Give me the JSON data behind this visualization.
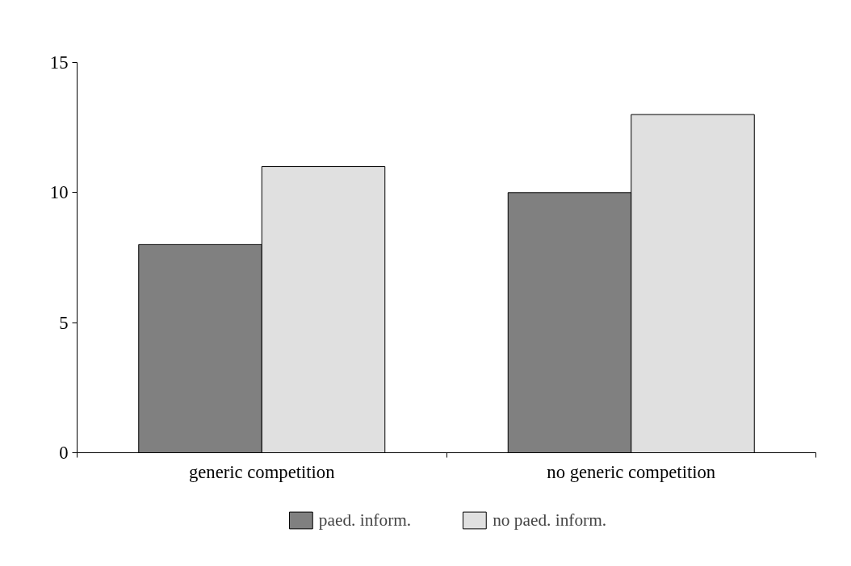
{
  "chart_data": {
    "type": "bar",
    "categories": [
      "generic competition",
      "no generic competition"
    ],
    "series": [
      {
        "name": "paed. inform.",
        "color": "#808080",
        "values": [
          8,
          10
        ]
      },
      {
        "name": "no paed. inform.",
        "color": "#e0e0e0",
        "values": [
          11,
          13
        ]
      }
    ],
    "ylim": [
      0,
      15
    ],
    "yticks": [
      0,
      5,
      10,
      15
    ],
    "grid": false,
    "legend": "bottom"
  }
}
